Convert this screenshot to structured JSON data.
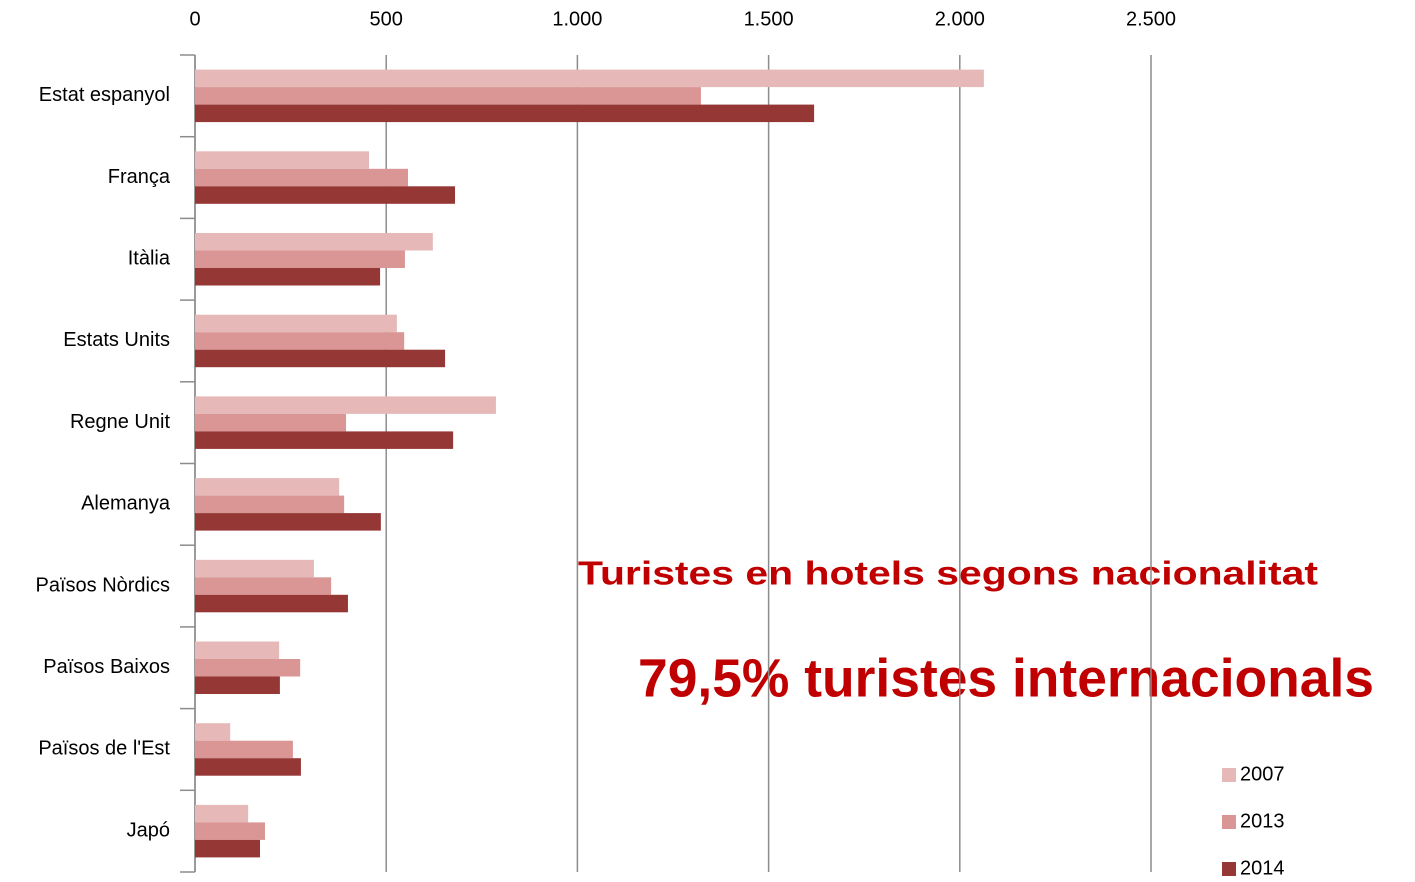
{
  "chart_data": {
    "type": "barh",
    "annotations": [
      "Turistes en hotels segons nacionalitat",
      "79,5% turistes internacionals"
    ],
    "categories": [
      "Estat espanyol",
      "França",
      "Itàlia",
      "Estats Units",
      "Regne Unit",
      "Alemanya",
      "Països Nòrdics",
      "Països Baixos",
      "Països de l'Est",
      "Japó"
    ],
    "series": [
      {
        "name": "2007",
        "color": "#e6b9b8",
        "values": [
          2063,
          455,
          622,
          528,
          787,
          377,
          311,
          220,
          92,
          139
        ]
      },
      {
        "name": "2013",
        "color": "#d99694",
        "values": [
          1323,
          557,
          549,
          547,
          395,
          390,
          356,
          275,
          256,
          183
        ]
      },
      {
        "name": "2014",
        "color": "#953735",
        "values": [
          1619,
          680,
          484,
          654,
          675,
          486,
          400,
          222,
          277,
          170
        ]
      }
    ],
    "xlim": [
      0,
      2500
    ],
    "xticks": [
      0,
      500,
      {
        "value": 1000,
        "label": "1.000"
      },
      {
        "value": 1500,
        "label": "1.500"
      },
      {
        "value": 2000,
        "label": "2.000"
      },
      {
        "value": 2500,
        "label": "2.500"
      }
    ],
    "grid": true,
    "legend": "bottom-right"
  }
}
